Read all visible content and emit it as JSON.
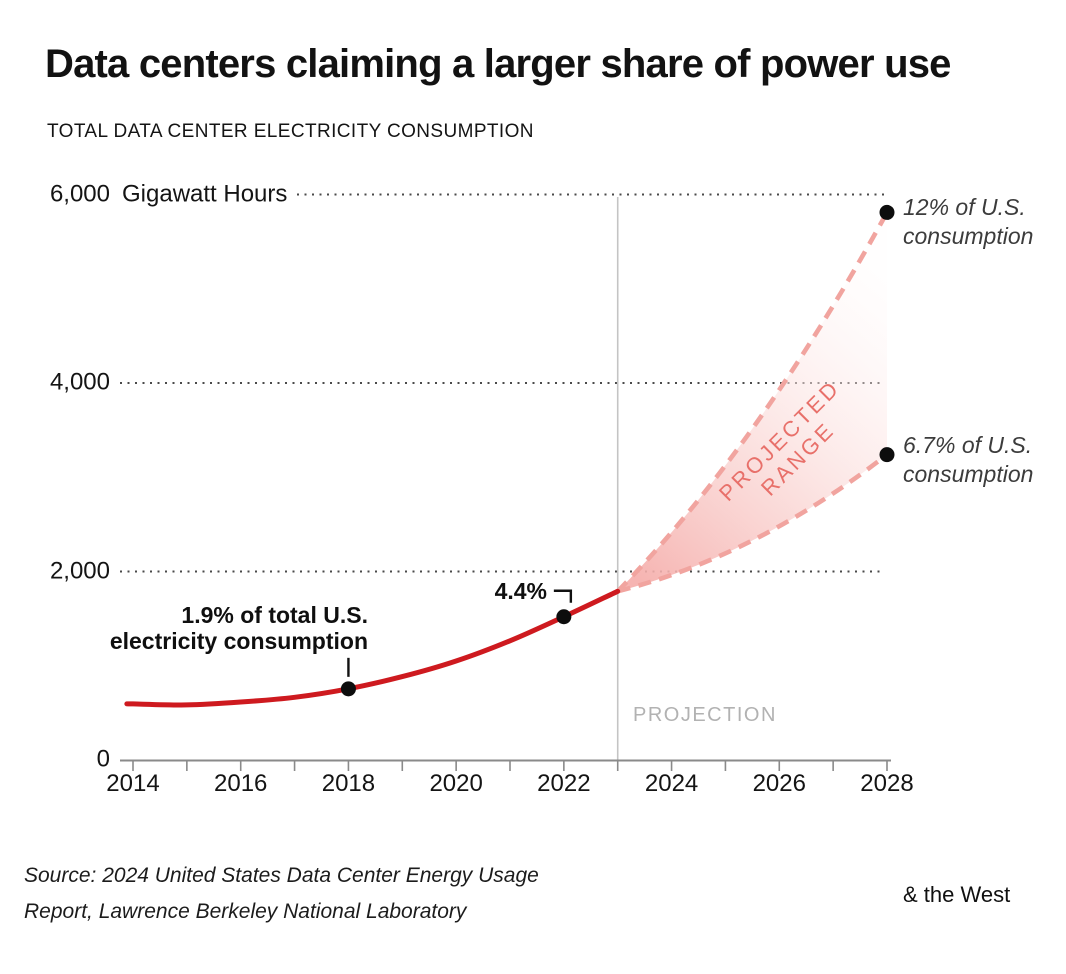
{
  "page": {
    "title": "Data centers claiming a larger share of power use",
    "subtitle": "TOTAL DATA CENTER ELECTRICITY CONSUMPTION"
  },
  "chart_data": {
    "type": "line",
    "title": "Data centers claiming a larger share of power use",
    "subtitle": "TOTAL DATA CENTER ELECTRICITY CONSUMPTION",
    "ylabel_unit": "Gigawatt Hours",
    "xlabel": "",
    "x_range": [
      2014,
      2028
    ],
    "ylim": [
      0,
      6300
    ],
    "grid": "dotted horizontal",
    "y_ticks": [
      {
        "value": 0,
        "label": "0"
      },
      {
        "value": 2000,
        "label": "2,000"
      },
      {
        "value": 4000,
        "label": "4,000"
      },
      {
        "value": 6000,
        "label": "6,000"
      }
    ],
    "gridline_values": [
      2000,
      4000,
      6000
    ],
    "x_tick_years": [
      2014,
      2015,
      2016,
      2017,
      2018,
      2019,
      2020,
      2021,
      2022,
      2023,
      2024,
      2025,
      2026,
      2027,
      2028
    ],
    "x_tick_labels": [
      2014,
      2016,
      2018,
      2020,
      2022,
      2024,
      2026,
      2028
    ],
    "historical": {
      "name": "Total data center electricity consumption (historical)",
      "x": [
        2014,
        2015,
        2016,
        2017,
        2018,
        2019,
        2020,
        2021,
        2022,
        2023
      ],
      "values": [
        595,
        585,
        615,
        665,
        755,
        885,
        1050,
        1265,
        1520,
        1790
      ]
    },
    "projection": {
      "start_year": 2023,
      "start_value": 1790,
      "end_year": 2028,
      "high": {
        "value": 5810,
        "label_lines": [
          "12% of U.S.",
          "consumption"
        ]
      },
      "low": {
        "value": 3240,
        "label_lines": [
          "6.7% of U.S.",
          "consumption"
        ]
      },
      "divider_label": "PROJECTION",
      "range_label_lines": [
        "PROJECTED",
        "RANGE"
      ]
    },
    "annotations": [
      {
        "year": 2018,
        "value": 755,
        "label_lines": [
          "1.9% of total U.S.",
          "electricity consumption"
        ]
      },
      {
        "year": 2022,
        "value": 1520,
        "label_lines": [
          "4.4%"
        ]
      }
    ]
  },
  "colors": {
    "history_line": "#ce1a1f",
    "projection_dash": "#f1a49f",
    "fan_fill_start": "#f5aca9",
    "fan_fill_mid": "#fad8d6",
    "range_label": "#e8706a",
    "divider_line": "#c4c4c4",
    "axis": "#8a8a8a",
    "gridline_dots": "#4a4a4a",
    "dot": "#0d0d0d",
    "annotation_italic": "#3c3c3c",
    "projection_label": "#b2b2b2"
  },
  "footer": {
    "source_line1": "Source: 2024 United States Data Center Energy Usage",
    "source_line2": "Report, Lawrence Berkeley National Laboratory",
    "logo": "& the West"
  }
}
